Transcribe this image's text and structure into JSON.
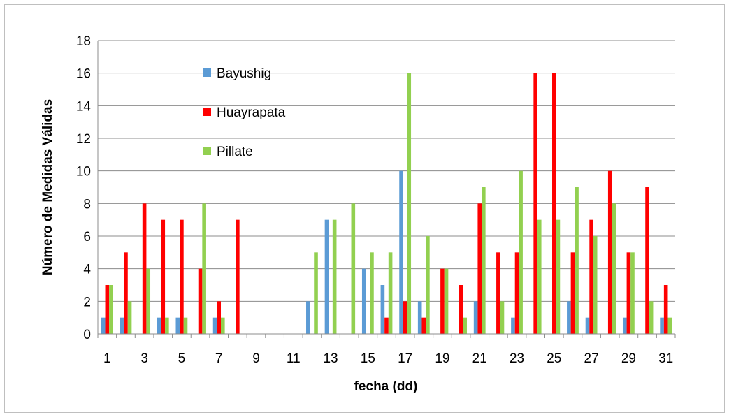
{
  "chart_data": {
    "type": "bar",
    "xlabel": "fecha (dd)",
    "ylabel": "Número de Medidas Válidas",
    "ylim": [
      0,
      18
    ],
    "yticks": [
      0,
      2,
      4,
      6,
      8,
      10,
      12,
      14,
      16,
      18
    ],
    "categories": [
      1,
      2,
      3,
      4,
      5,
      6,
      7,
      8,
      9,
      10,
      11,
      12,
      13,
      14,
      15,
      16,
      17,
      18,
      19,
      20,
      21,
      22,
      23,
      24,
      25,
      26,
      27,
      28,
      29,
      30,
      31
    ],
    "xtick_labels": [
      "1",
      "3",
      "5",
      "7",
      "9",
      "11",
      "13",
      "15",
      "17",
      "19",
      "21",
      "23",
      "25",
      "27",
      "29",
      "31"
    ],
    "grid": "horizontal",
    "legend_position": "top-left",
    "series": [
      {
        "name": "Bayushig",
        "color": "#5b9bd5",
        "values": [
          1,
          1,
          0,
          1,
          1,
          0,
          1,
          0,
          0,
          0,
          0,
          2,
          7,
          0,
          4,
          3,
          10,
          2,
          0,
          0,
          2,
          0,
          1,
          0,
          0,
          2,
          1,
          0,
          1,
          0,
          1
        ]
      },
      {
        "name": "Huayrapata",
        "color": "#ff0000",
        "values": [
          3,
          5,
          8,
          7,
          7,
          4,
          2,
          7,
          0,
          0,
          0,
          0,
          0,
          0,
          0,
          1,
          2,
          1,
          4,
          3,
          8,
          5,
          5,
          16,
          16,
          5,
          7,
          10,
          5,
          9,
          3
        ]
      },
      {
        "name": "Pillate",
        "color": "#92d050",
        "values": [
          3,
          2,
          4,
          1,
          1,
          8,
          1,
          0,
          0,
          0,
          0,
          5,
          7,
          8,
          5,
          5,
          16,
          6,
          4,
          1,
          9,
          2,
          10,
          7,
          7,
          9,
          6,
          8,
          5,
          2,
          1
        ]
      }
    ]
  }
}
